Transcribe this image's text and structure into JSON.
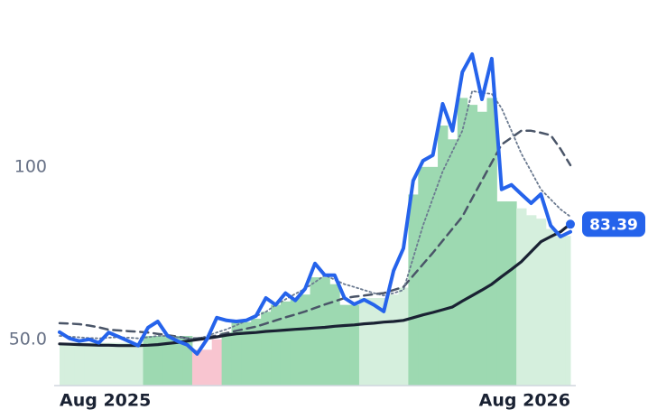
{
  "chart_data": {
    "type": "line",
    "categories": [
      "Aug 2025",
      null,
      null,
      null,
      null,
      null,
      null,
      null,
      null,
      null,
      null,
      null,
      null,
      null,
      null,
      null,
      null,
      null,
      null,
      null,
      null,
      null,
      null,
      null,
      null,
      null,
      null,
      null,
      null,
      null,
      null,
      null,
      null,
      null,
      null,
      null,
      null,
      null,
      null,
      null,
      null,
      null,
      null,
      null,
      null,
      null,
      null,
      null,
      null,
      null,
      null,
      null,
      "Aug 2026"
    ],
    "ylim": [
      36.6,
      148.4
    ],
    "yticks": [
      {
        "value": 50,
        "label": "50.0"
      },
      100
    ],
    "bars": {
      "values": [
        49,
        49,
        49,
        49,
        49,
        49,
        49,
        49,
        49,
        51,
        51,
        51,
        51,
        51,
        47,
        47,
        50,
        52,
        55,
        55,
        56,
        58,
        60,
        61,
        62,
        63,
        68,
        68,
        66,
        60,
        60,
        62,
        62,
        62,
        63,
        65,
        92,
        100,
        100,
        112,
        108,
        120,
        118,
        116,
        120,
        90,
        90,
        88,
        86,
        85,
        82,
        80,
        80
      ],
      "colors": [
        "#d5efdd",
        "#d5efdd",
        "#d5efdd",
        "#d5efdd",
        "#d5efdd",
        "#d5efdd",
        "#d5efdd",
        "#d5efdd",
        "#d5efdd",
        "#9dd9b1",
        "#9dd9b1",
        "#9dd9b1",
        "#9dd9b1",
        "#9dd9b1",
        "#f8c5d0",
        "#f8c5d0",
        "#f8c5d0",
        "#9dd9b1",
        "#9dd9b1",
        "#9dd9b1",
        "#9dd9b1",
        "#9dd9b1",
        "#9dd9b1",
        "#9dd9b1",
        "#9dd9b1",
        "#9dd9b1",
        "#9dd9b1",
        "#9dd9b1",
        "#9dd9b1",
        "#9dd9b1",
        "#9dd9b1",
        "#d5efdd",
        "#d5efdd",
        "#d5efdd",
        "#d5efdd",
        "#d5efdd",
        "#9dd9b1",
        "#9dd9b1",
        "#9dd9b1",
        "#9dd9b1",
        "#9dd9b1",
        "#9dd9b1",
        "#9dd9b1",
        "#9dd9b1",
        "#9dd9b1",
        "#9dd9b1",
        "#9dd9b1",
        "#d5efdd",
        "#d5efdd",
        "#d5efdd",
        "#d5efdd",
        "#d5efdd",
        "#d5efdd"
      ]
    },
    "series": [
      {
        "color": "#4a5568",
        "style": "dashed",
        "width": 2.5,
        "values": [
          54.7,
          54.6,
          54.4,
          54.0,
          53.5,
          52.8,
          52.6,
          52.4,
          52.2,
          52.0,
          51.6,
          51.2,
          50.8,
          50.3,
          50.3,
          50.6,
          51.1,
          51.8,
          52.5,
          53.1,
          53.7,
          54.6,
          55.5,
          56.4,
          57.2,
          58.1,
          59.1,
          60.1,
          61.0,
          62.0,
          62.4,
          62.7,
          63.1,
          63.4,
          64.3,
          65.2,
          68.5,
          71.8,
          75.1,
          78.6,
          82.1,
          85.6,
          90.9,
          96.1,
          101.3,
          106.5,
          108.5,
          110.5,
          110.5,
          109.9,
          109.2,
          105.2,
          100.5
        ]
      },
      {
        "color": "#6b7a90",
        "style": "dotted",
        "width": 1.8,
        "values": [
          51.0,
          50.8,
          50.6,
          50.4,
          50.3,
          50.5,
          50.6,
          50.5,
          50.3,
          50.6,
          51.0,
          51.0,
          50.6,
          50.3,
          50.0,
          51.0,
          52.0,
          52.9,
          54.1,
          55.4,
          56.7,
          58.0,
          60.0,
          61.6,
          63.2,
          64.7,
          66.6,
          68.6,
          67.3,
          66.0,
          65.2,
          64.3,
          63.4,
          62.7,
          63.4,
          64.3,
          73.6,
          83.0,
          90.9,
          98.7,
          104.6,
          110.5,
          122.0,
          121.5,
          121.2,
          117.0,
          110.5,
          103.9,
          98.7,
          93.5,
          90.6,
          87.7,
          85.6
        ]
      },
      {
        "color": "#1a2233",
        "style": "solid",
        "width": 3.2,
        "values": [
          48.7,
          48.6,
          48.5,
          48.4,
          48.3,
          48.3,
          48.2,
          48.2,
          48.2,
          48.3,
          48.5,
          48.8,
          49.1,
          49.5,
          49.9,
          50.3,
          50.7,
          51.2,
          51.6,
          51.8,
          52.0,
          52.3,
          52.5,
          52.7,
          52.9,
          53.1,
          53.3,
          53.5,
          53.8,
          54.0,
          54.2,
          54.5,
          54.7,
          55.0,
          55.2,
          55.5,
          56.3,
          57.1,
          57.8,
          58.6,
          59.4,
          61.1,
          62.7,
          64.3,
          66.0,
          68.2,
          70.3,
          72.5,
          75.4,
          78.3,
          79.8,
          81.2,
          83.5
        ]
      },
      {
        "color": "#2563eb",
        "style": "solid",
        "width": 4,
        "values": [
          52.1,
          50.3,
          49.5,
          50.0,
          49.0,
          52.0,
          50.8,
          49.5,
          48.2,
          53.4,
          55.2,
          51.0,
          49.5,
          48.4,
          45.8,
          50.0,
          56.3,
          55.5,
          55.2,
          55.5,
          56.8,
          62.0,
          60.0,
          63.4,
          61.3,
          64.7,
          72.0,
          68.6,
          68.6,
          62.0,
          60.2,
          61.5,
          60.0,
          58.1,
          69.9,
          76.4,
          96.0,
          101.8,
          103.4,
          118.3,
          110.5,
          127.5,
          132.7,
          119.6,
          131.4,
          93.5,
          94.8,
          92.1,
          89.5,
          92.1,
          83.0,
          79.8,
          81.2
        ]
      }
    ],
    "last_price": {
      "value": 83.39,
      "label": "83.39"
    }
  }
}
